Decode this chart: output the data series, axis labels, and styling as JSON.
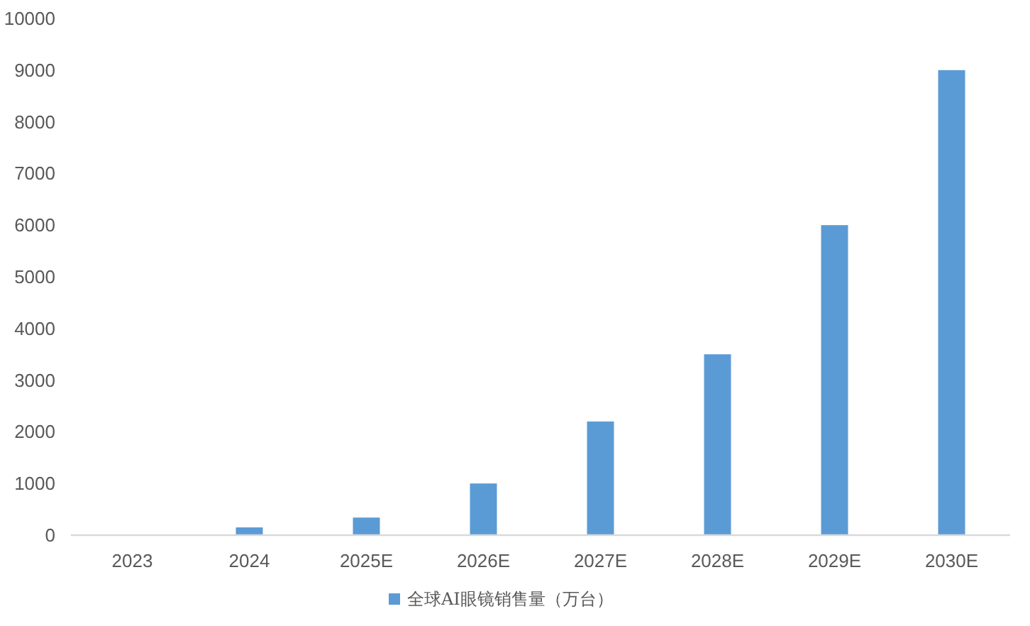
{
  "chart_data": {
    "type": "bar",
    "categories": [
      "2023",
      "2024",
      "2025E",
      "2026E",
      "2027E",
      "2028E",
      "2029E",
      "2030E"
    ],
    "series": [
      {
        "name": "全球AI眼镜销售量（万台）",
        "color": "#5b9bd5",
        "values": [
          0,
          150,
          340,
          1000,
          2200,
          3500,
          6000,
          9000
        ]
      }
    ],
    "ylim": [
      0,
      10000
    ],
    "yticks": [
      0,
      1000,
      2000,
      3000,
      4000,
      5000,
      6000,
      7000,
      8000,
      9000,
      10000
    ],
    "legend": "bottom"
  }
}
